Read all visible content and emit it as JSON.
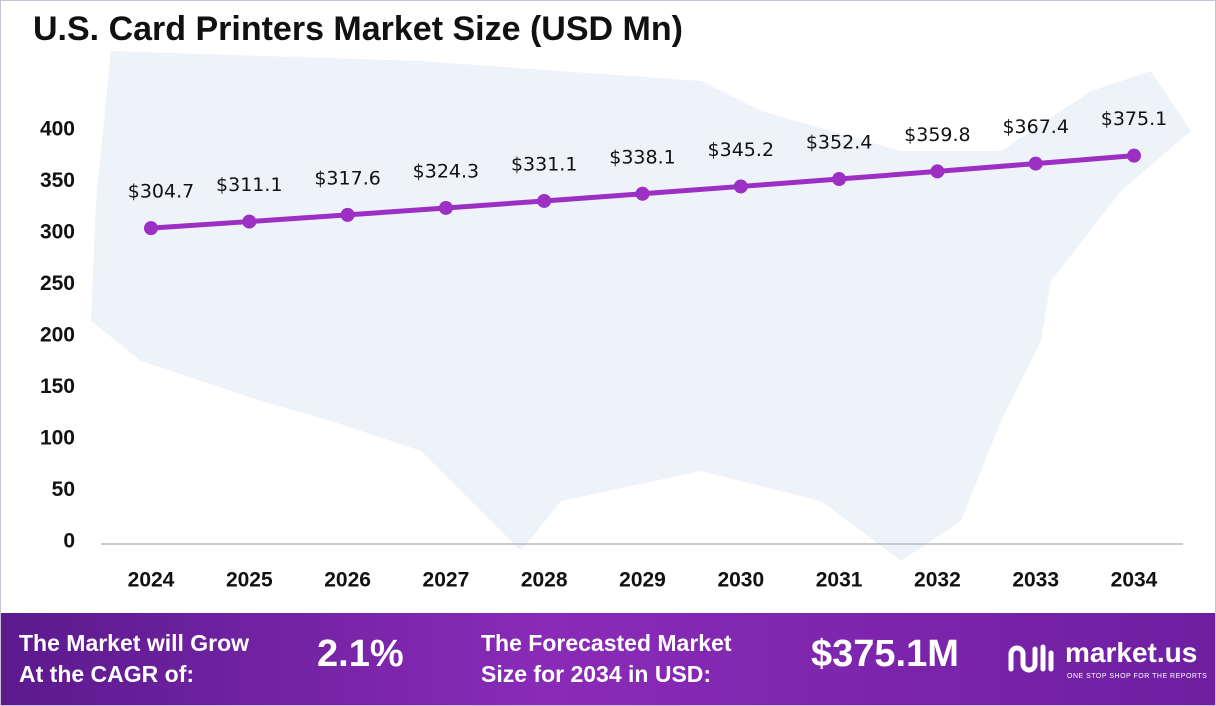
{
  "chart_data": {
    "type": "line",
    "title": "U.S. Card Printers Market Size (USD Mn)",
    "categories": [
      "2024",
      "2025",
      "2026",
      "2027",
      "2028",
      "2029",
      "2030",
      "2031",
      "2032",
      "2033",
      "2034"
    ],
    "values": [
      304.7,
      311.1,
      317.6,
      324.3,
      331.1,
      338.1,
      345.2,
      352.4,
      359.8,
      367.4,
      375.1
    ],
    "value_labels": [
      "$304.7",
      "$311.1",
      "$317.6",
      "$324.3",
      "$331.1",
      "$338.1",
      "$345.2",
      "$352.4",
      "$359.8",
      "$367.4",
      "$375.1"
    ],
    "color": "#9c2fc4",
    "ylim": [
      0,
      400
    ],
    "yticks": [
      0,
      50,
      100,
      150,
      200,
      250,
      300,
      350,
      400
    ],
    "grid": false
  },
  "footer": {
    "cagr_label": [
      "The Market will Grow",
      "At the CAGR of:"
    ],
    "cagr_value": "2.1%",
    "forecast_label": [
      "The Forecasted Market",
      "Size for 2034 in USD:"
    ],
    "forecast_value": "$375.1M",
    "brand": "market.us",
    "tagline": "ONE STOP SHOP FOR THE REPORTS"
  }
}
